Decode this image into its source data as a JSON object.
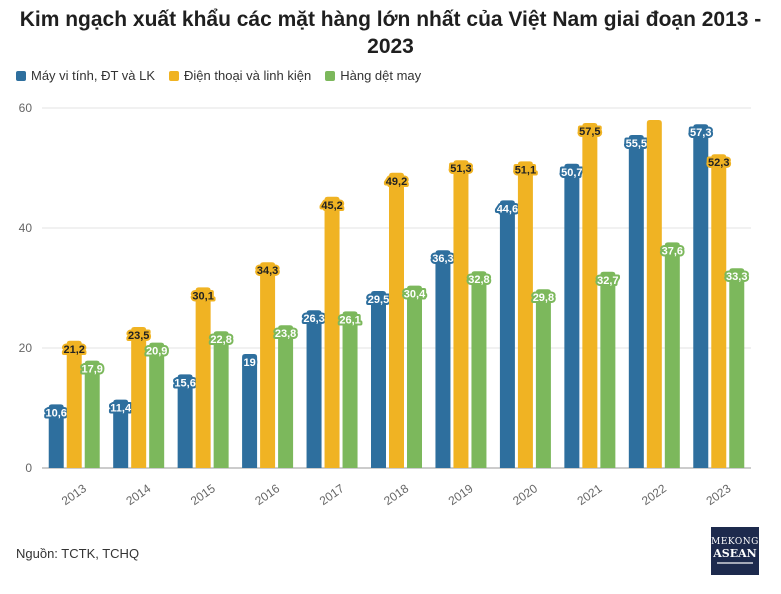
{
  "chart_data": {
    "type": "bar",
    "title": "Kim ngạch xuất khẩu các mặt hàng lớn nhất của Việt Nam giai đoạn 2013 - 2023",
    "categories": [
      "2013",
      "2014",
      "2015",
      "2016",
      "2017",
      "2018",
      "2019",
      "2020",
      "2021",
      "2022",
      "2023"
    ],
    "series": [
      {
        "name": "Máy vi tính, ĐT và LK",
        "color": "#2e6f9e",
        "values": [
          10.6,
          11.4,
          15.6,
          19,
          26.3,
          29.5,
          36.3,
          44.6,
          50.7,
          55.5,
          57.3
        ],
        "labels": [
          "10,6",
          "11,4",
          "15,6",
          "19",
          "26,3",
          "29,5",
          "36,3",
          "44,6",
          "50,7",
          "55,5",
          "57,3"
        ]
      },
      {
        "name": "Điện thoại và linh kiện",
        "color": "#f0b323",
        "values": [
          21.2,
          23.5,
          30.1,
          34.3,
          45.2,
          49.2,
          51.3,
          51.1,
          57.5,
          58,
          52.3
        ],
        "labels": [
          "21,2",
          "23,5",
          "30,1",
          "34,3",
          "45,2",
          "49,2",
          "51,3",
          "51,1",
          "57,5",
          "",
          "52,3"
        ]
      },
      {
        "name": "Hàng dệt may",
        "color": "#7cb85c",
        "values": [
          17.9,
          20.9,
          22.8,
          23.8,
          26.1,
          30.4,
          32.8,
          29.8,
          32.7,
          37.6,
          33.3
        ],
        "labels": [
          "17,9",
          "20,9",
          "22,8",
          "23,8",
          "26,1",
          "30,4",
          "32,8",
          "29,8",
          "32,7",
          "37,6",
          "33,3"
        ]
      }
    ],
    "ylim": [
      0,
      60
    ],
    "yticks": [
      "0",
      "20",
      "40",
      "60"
    ],
    "grid": true,
    "legend": "top-left"
  },
  "source": "Nguồn: TCTK, TCHQ",
  "logo": {
    "line1": "MEKONG",
    "line2": "ASEAN"
  }
}
